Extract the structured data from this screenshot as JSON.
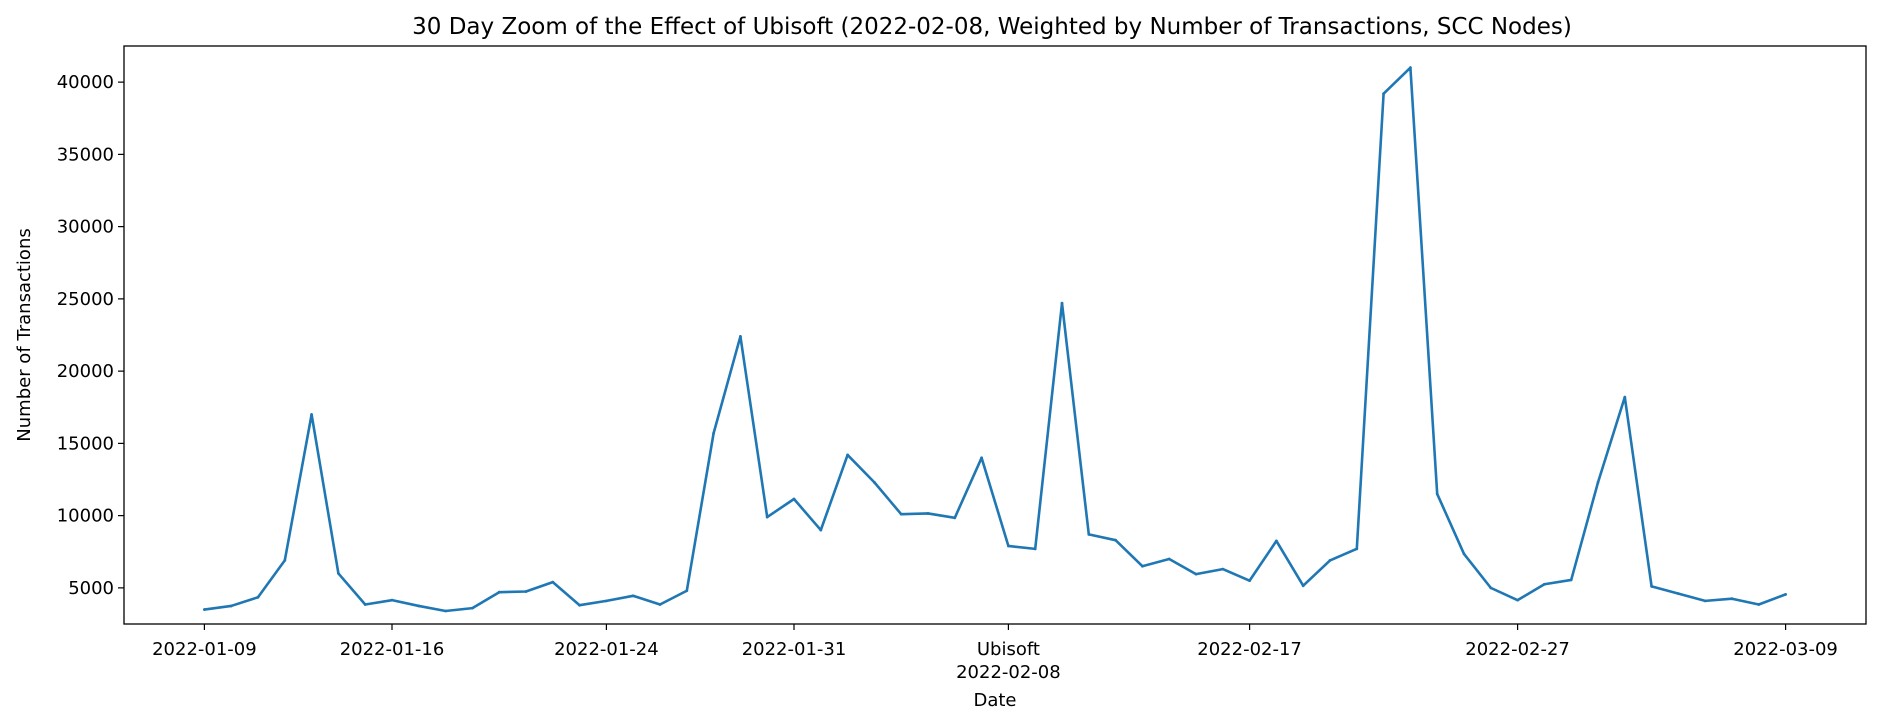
{
  "chart_data": {
    "type": "line",
    "title": "30 Day Zoom of the Effect of Ubisoft (2022-02-08, Weighted by Number of Transactions, SCC Nodes)",
    "xlabel": "Date",
    "ylabel": "Number of Transactions",
    "xlim": [
      "2022-01-06",
      "2022-03-12"
    ],
    "ylim": [
      2500,
      42500
    ],
    "grid": false,
    "legend": "none",
    "line_color": "#1f77b4",
    "x_ticks": [
      {
        "date": "2022-01-09",
        "label": "2022-01-09"
      },
      {
        "date": "2022-01-16",
        "label": "2022-01-16"
      },
      {
        "date": "2022-01-24",
        "label": "2022-01-24"
      },
      {
        "date": "2022-01-31",
        "label": "2022-01-31"
      },
      {
        "date": "2022-02-08",
        "label": "2022-02-08",
        "label_top": "Ubisoft"
      },
      {
        "date": "2022-02-17",
        "label": "2022-02-17"
      },
      {
        "date": "2022-02-27",
        "label": "2022-02-27"
      },
      {
        "date": "2022-03-09",
        "label": "2022-03-09"
      }
    ],
    "y_ticks": [
      5000,
      10000,
      15000,
      20000,
      25000,
      30000,
      35000,
      40000
    ],
    "series": [
      {
        "x": [
          "2022-01-09",
          "2022-01-10",
          "2022-01-11",
          "2022-01-12",
          "2022-01-13",
          "2022-01-14",
          "2022-01-15",
          "2022-01-16",
          "2022-01-17",
          "2022-01-18",
          "2022-01-19",
          "2022-01-20",
          "2022-01-21",
          "2022-01-22",
          "2022-01-23",
          "2022-01-24",
          "2022-01-25",
          "2022-01-26",
          "2022-01-27",
          "2022-01-28",
          "2022-01-29",
          "2022-01-30",
          "2022-01-31",
          "2022-02-01",
          "2022-02-02",
          "2022-02-03",
          "2022-02-04",
          "2022-02-05",
          "2022-02-06",
          "2022-02-07",
          "2022-02-08",
          "2022-02-09",
          "2022-02-10",
          "2022-02-11",
          "2022-02-12",
          "2022-02-13",
          "2022-02-14",
          "2022-02-15",
          "2022-02-16",
          "2022-02-17",
          "2022-02-18",
          "2022-02-19",
          "2022-02-20",
          "2022-02-21",
          "2022-02-22",
          "2022-02-23",
          "2022-02-24",
          "2022-02-25",
          "2022-02-26",
          "2022-02-27",
          "2022-02-28",
          "2022-03-01",
          "2022-03-02",
          "2022-03-03",
          "2022-03-04",
          "2022-03-05",
          "2022-03-06",
          "2022-03-07",
          "2022-03-08",
          "2022-03-09"
        ],
        "y": [
          3500,
          3750,
          4350,
          6900,
          17000,
          6000,
          3850,
          4150,
          3750,
          3400,
          3600,
          4700,
          4750,
          5400,
          3800,
          4100,
          4450,
          3850,
          4800,
          15700,
          22400,
          9900,
          11150,
          9000,
          14200,
          12300,
          10100,
          10150,
          9850,
          14000,
          7900,
          7700,
          24700,
          8700,
          8300,
          6500,
          7000,
          5950,
          6300,
          5500,
          8250,
          5150,
          6900,
          7700,
          39200,
          41000,
          11500,
          7350,
          5000,
          4150,
          5250,
          5550,
          12300,
          18200,
          5100,
          4600,
          4100,
          4250,
          3850,
          4550
        ]
      }
    ]
  }
}
